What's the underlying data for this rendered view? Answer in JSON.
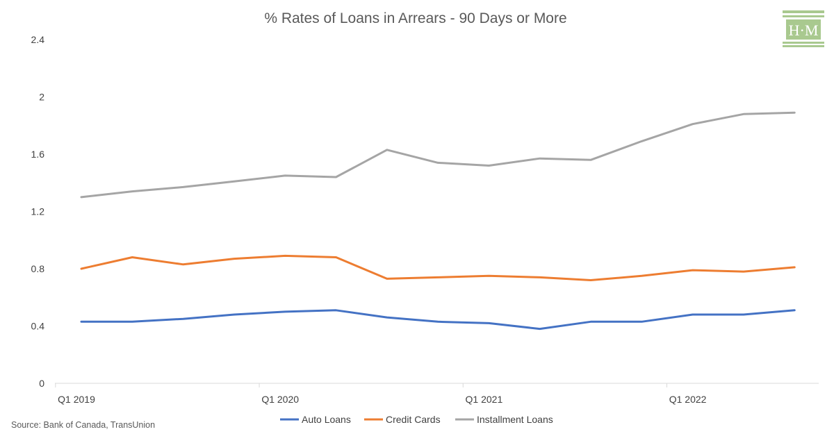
{
  "chart_data": {
    "type": "line",
    "title": "% Rates of Loans in Arrears - 90 Days or More",
    "xlabel": "",
    "ylabel": "",
    "ylim": [
      0,
      2.4
    ],
    "y_ticks": [
      "0",
      "0.4",
      "0.8",
      "1.2",
      "1.6",
      "2",
      "2.4"
    ],
    "grid": false,
    "legend_position": "bottom",
    "x_tick_labels": [
      "Q1 2019",
      "Q1 2020",
      "Q1 2021",
      "Q1 2022"
    ],
    "categories": [
      "Q1 2019",
      "Q2 2019",
      "Q3 2019",
      "Q4 2019",
      "Q1 2020",
      "Q2 2020",
      "Q3 2020",
      "Q4 2020",
      "Q1 2021",
      "Q2 2021",
      "Q3 2021",
      "Q4 2021",
      "Q1 2022",
      "Q2 2022",
      "Q3 2022"
    ],
    "series": [
      {
        "name": "Auto Loans",
        "color": "#4472C4",
        "values": [
          0.43,
          0.43,
          0.45,
          0.48,
          0.5,
          0.51,
          0.46,
          0.43,
          0.42,
          0.38,
          0.43,
          0.43,
          0.48,
          0.48,
          0.51
        ]
      },
      {
        "name": "Credit Cards",
        "color": "#ED7D31",
        "values": [
          0.8,
          0.88,
          0.83,
          0.87,
          0.89,
          0.88,
          0.73,
          0.74,
          0.75,
          0.74,
          0.72,
          0.75,
          0.79,
          0.78,
          0.81
        ]
      },
      {
        "name": "Installment Loans",
        "color": "#A5A5A5",
        "values": [
          1.3,
          1.34,
          1.37,
          1.41,
          1.45,
          1.44,
          1.63,
          1.54,
          1.52,
          1.57,
          1.56,
          1.69,
          1.81,
          1.88,
          1.89
        ]
      }
    ]
  },
  "source": "Source: Bank of Canada, TransUnion",
  "logo": {
    "text": "H·M",
    "color": "#A9C98F"
  },
  "axis_color": "#D9D9D9"
}
